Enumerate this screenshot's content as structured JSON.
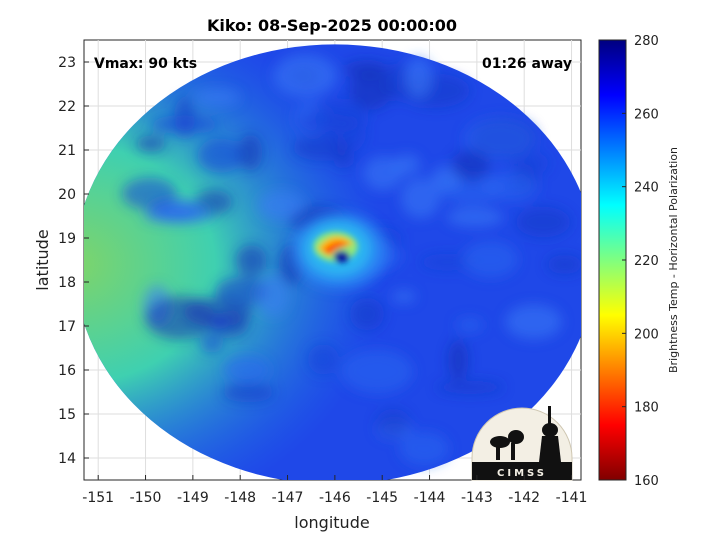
{
  "chart_data": {
    "type": "heatmap",
    "title": "Kiko: 08-Sep-2025 00:00:00",
    "xlabel": "longitude",
    "ylabel": "latitude",
    "xlim": [
      -151.3,
      -140.8
    ],
    "ylim": [
      13.5,
      23.5
    ],
    "x_ticks": [
      -151,
      -150,
      -149,
      -148,
      -147,
      -146,
      -145,
      -144,
      -143,
      -142,
      -141
    ],
    "y_ticks": [
      14,
      15,
      16,
      17,
      18,
      19,
      20,
      21,
      22,
      23
    ],
    "grid": true,
    "annotations": {
      "vmax": "Vmax: 90 kts",
      "time_offset": "01:26 away"
    },
    "storm_center": {
      "lon": -145.9,
      "lat": 18.8
    },
    "colorbar": {
      "label": "Brightness Temp - Horizontal Polarization",
      "range": [
        160,
        280
      ],
      "ticks": [
        160,
        180,
        200,
        220,
        240,
        260,
        280
      ],
      "colormap": "jet"
    },
    "swath": {
      "center_lon": -146.0,
      "center_lat": 18.4,
      "radius_lon": 5.5,
      "radius_lat": 5.0
    }
  },
  "logo": {
    "text": "CIMSS"
  },
  "colors": {
    "background_field": "#1c3fe0",
    "eye_warm": "#ff8c00",
    "no_data": "#ffffff"
  }
}
